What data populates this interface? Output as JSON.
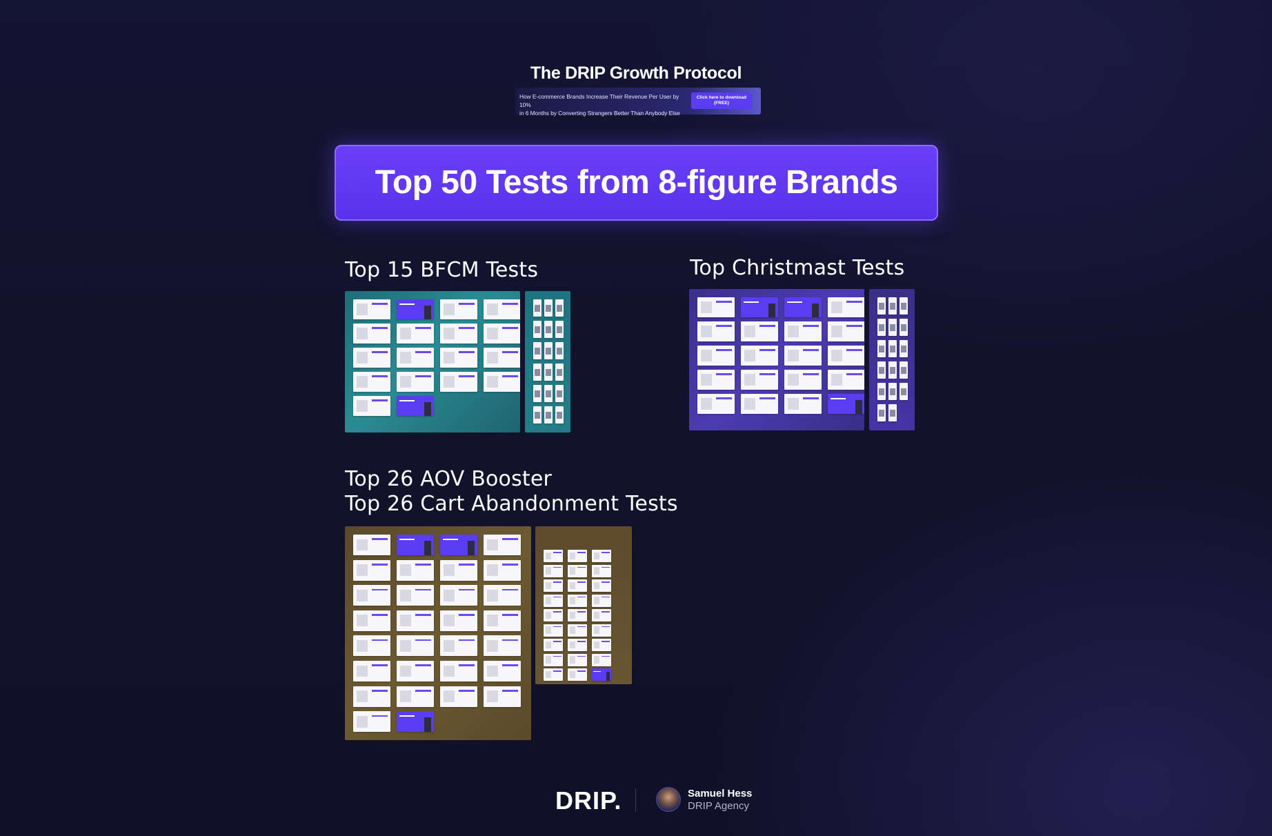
{
  "header": {
    "protocol_title": "The DRIP Growth Protocol",
    "protocol_description_line1": "How E-commerce Brands Increase Their Revenue Per User by 10%",
    "protocol_description_line2": "in 6 Months by Converting Strangers Better Than Anybody Else",
    "download_button_line1": "Click here to download",
    "download_button_line2": "(FREE)"
  },
  "hero": {
    "title": "Top 50 Tests from 8-figure Brands"
  },
  "sections": {
    "bfcm": {
      "title": "Top 15 BFCM Tests"
    },
    "christmas": {
      "title": "Top Christmast Tests"
    },
    "aov": {
      "title_line1": "Top 26 AOV Booster",
      "title_line2": "Top 26 Cart Abandonment Tests"
    }
  },
  "footer": {
    "logo_text": "DRIP.",
    "author_name": "Samuel Hess",
    "author_org": "DRIP Agency"
  },
  "colors": {
    "background": "#12122b",
    "accent_purple": "#6b3ef7",
    "teal_board": "#237e87",
    "purple_board": "#4633a6",
    "brown_board": "#685532"
  }
}
